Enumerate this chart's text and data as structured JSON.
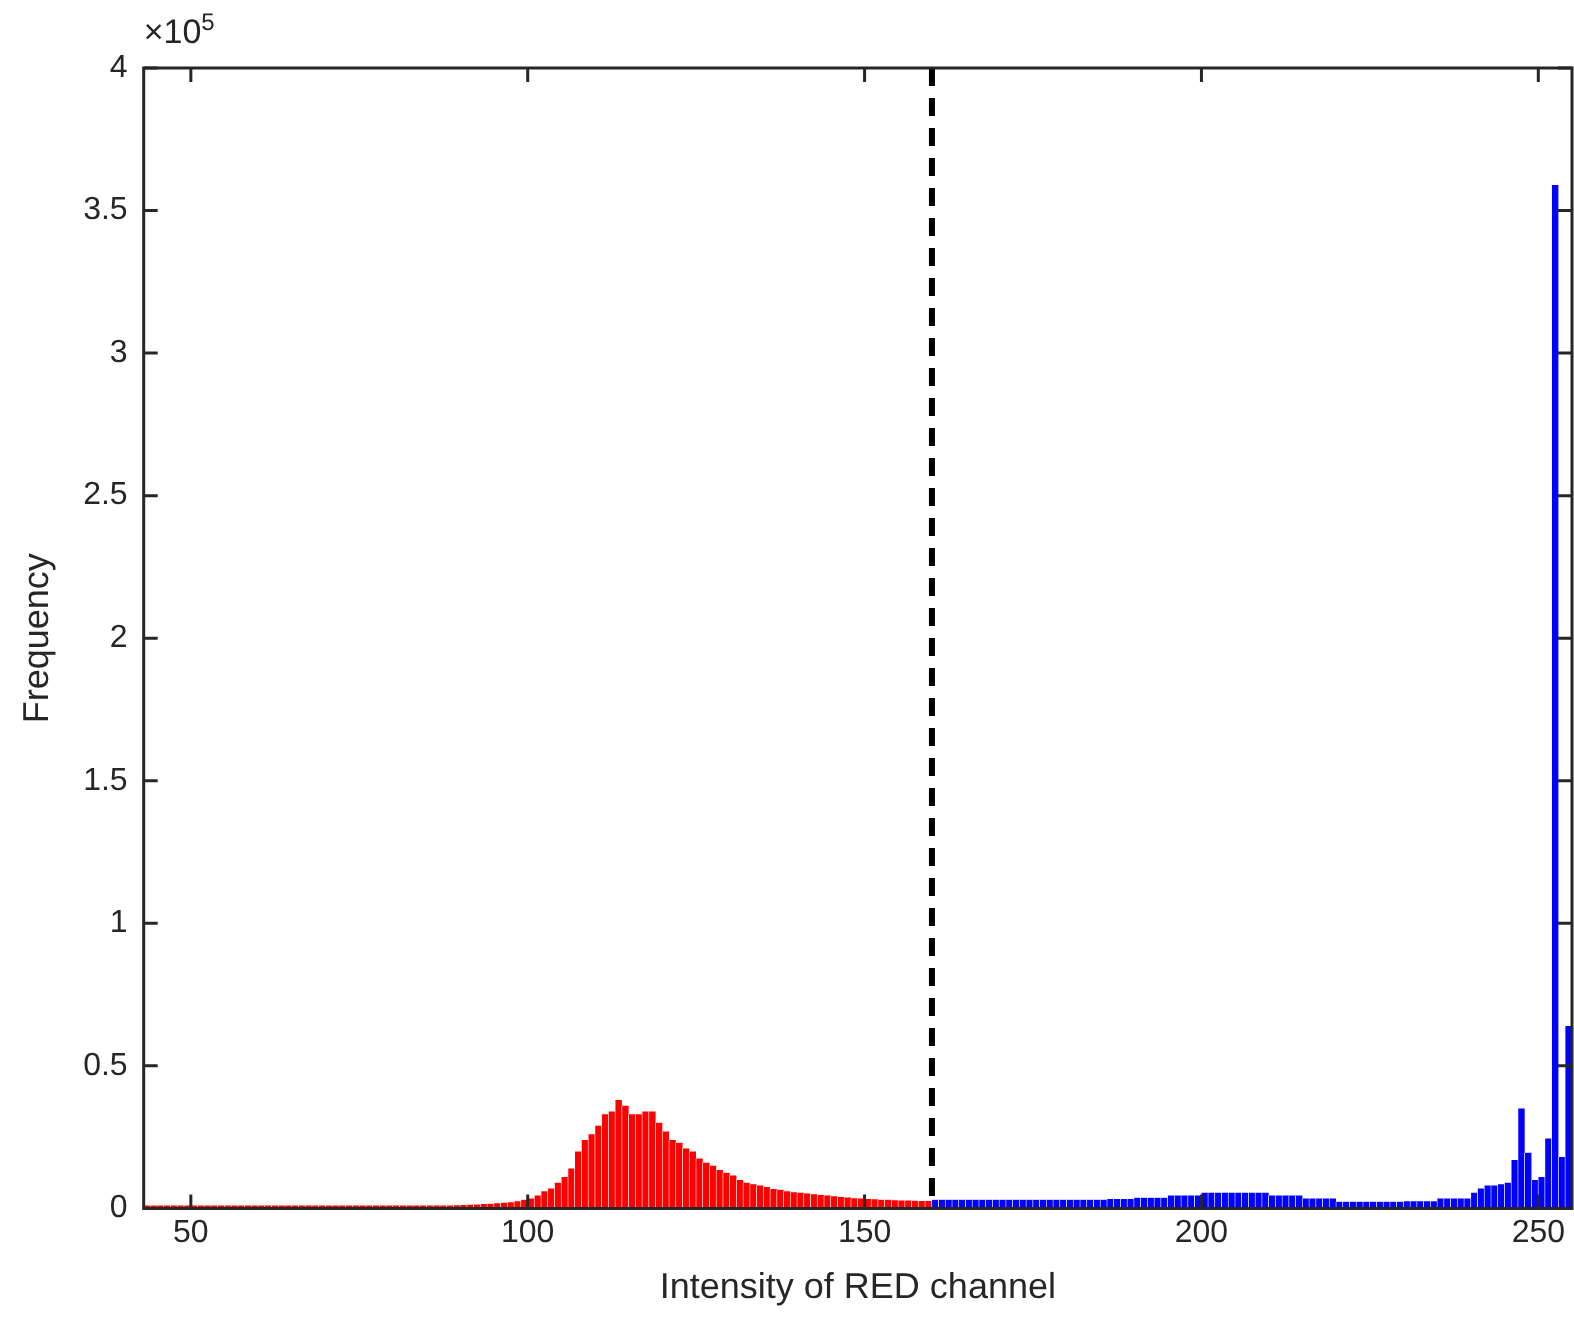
{
  "chart_data": {
    "type": "histogram",
    "xlabel": "Intensity of RED channel",
    "ylabel": "Frequency",
    "annotations": [
      "×10$^{5}$"
    ],
    "xlim": [
      43,
      255
    ],
    "xticks": [
      50,
      100,
      150,
      200,
      250
    ],
    "ylim": [
      0,
      4
    ],
    "yticks": [
      0,
      0.5,
      1,
      1.5,
      2,
      2.5,
      3,
      3.5,
      4
    ],
    "ref_lines": [
      {
        "axis": "x",
        "value": 160,
        "color": "#000000",
        "line_style": "dashed"
      }
    ],
    "bins": [
      43,
      44,
      45,
      46,
      47,
      48,
      49,
      50,
      51,
      52,
      53,
      54,
      55,
      56,
      57,
      58,
      59,
      60,
      61,
      62,
      63,
      64,
      65,
      66,
      67,
      68,
      69,
      70,
      71,
      72,
      73,
      74,
      75,
      76,
      77,
      78,
      79,
      80,
      81,
      82,
      83,
      84,
      85,
      86,
      87,
      88,
      89,
      90,
      91,
      92,
      93,
      94,
      95,
      96,
      97,
      98,
      99,
      100,
      101,
      102,
      103,
      104,
      105,
      106,
      107,
      108,
      109,
      110,
      111,
      112,
      113,
      114,
      115,
      116,
      117,
      118,
      119,
      120,
      121,
      122,
      123,
      124,
      125,
      126,
      127,
      128,
      129,
      130,
      131,
      132,
      133,
      134,
      135,
      136,
      137,
      138,
      139,
      140,
      141,
      142,
      143,
      144,
      145,
      146,
      147,
      148,
      149,
      150,
      151,
      152,
      153,
      154,
      155,
      156,
      157,
      158,
      159,
      160,
      161,
      162,
      163,
      164,
      165,
      166,
      167,
      168,
      169,
      170,
      171,
      172,
      173,
      174,
      175,
      176,
      177,
      178,
      179,
      180,
      181,
      182,
      183,
      184,
      185,
      186,
      187,
      188,
      189,
      190,
      191,
      192,
      193,
      194,
      195,
      196,
      197,
      198,
      199,
      200,
      201,
      202,
      203,
      204,
      205,
      206,
      207,
      208,
      209,
      210,
      211,
      212,
      213,
      214,
      215,
      216,
      217,
      218,
      219,
      220,
      221,
      222,
      223,
      224,
      225,
      226,
      227,
      228,
      229,
      230,
      231,
      232,
      233,
      234,
      235,
      236,
      237,
      238,
      239,
      240,
      241,
      242,
      243,
      244,
      245,
      246,
      247,
      248,
      249,
      250,
      251,
      252,
      253,
      254,
      255
    ],
    "values": [
      0.01,
      0.01,
      0.01,
      0.01,
      0.01,
      0.01,
      0.01,
      0.01,
      0.01,
      0.01,
      0.01,
      0.01,
      0.01,
      0.01,
      0.01,
      0.01,
      0.01,
      0.01,
      0.01,
      0.01,
      0.01,
      0.01,
      0.01,
      0.01,
      0.01,
      0.01,
      0.01,
      0.01,
      0.01,
      0.01,
      0.01,
      0.01,
      0.01,
      0.01,
      0.01,
      0.01,
      0.01,
      0.01,
      0.01,
      0.01,
      0.01,
      0.01,
      0.01,
      0.01,
      0.01,
      0.01,
      0.011,
      0.012,
      0.013,
      0.014,
      0.015,
      0.016,
      0.018,
      0.02,
      0.022,
      0.025,
      0.03,
      0.035,
      0.045,
      0.06,
      0.07,
      0.09,
      0.11,
      0.14,
      0.2,
      0.24,
      0.26,
      0.29,
      0.33,
      0.34,
      0.38,
      0.36,
      0.33,
      0.33,
      0.34,
      0.34,
      0.3,
      0.27,
      0.24,
      0.23,
      0.21,
      0.2,
      0.175,
      0.16,
      0.15,
      0.135,
      0.125,
      0.115,
      0.1,
      0.09,
      0.085,
      0.08,
      0.075,
      0.068,
      0.065,
      0.06,
      0.057,
      0.055,
      0.052,
      0.05,
      0.047,
      0.045,
      0.043,
      0.04,
      0.038,
      0.036,
      0.035,
      0.033,
      0.032,
      0.03,
      0.03,
      0.029,
      0.028,
      0.028,
      0.027,
      0.026,
      0.026,
      0.03,
      0.03,
      0.03,
      0.03,
      0.03,
      0.03,
      0.03,
      0.03,
      0.03,
      0.03,
      0.03,
      0.03,
      0.03,
      0.03,
      0.03,
      0.03,
      0.03,
      0.03,
      0.03,
      0.03,
      0.03,
      0.03,
      0.03,
      0.03,
      0.03,
      0.03,
      0.033,
      0.033,
      0.033,
      0.033,
      0.037,
      0.037,
      0.037,
      0.037,
      0.037,
      0.045,
      0.045,
      0.045,
      0.045,
      0.045,
      0.055,
      0.055,
      0.055,
      0.055,
      0.055,
      0.055,
      0.055,
      0.055,
      0.055,
      0.055,
      0.045,
      0.045,
      0.045,
      0.045,
      0.045,
      0.035,
      0.035,
      0.035,
      0.035,
      0.035,
      0.023,
      0.023,
      0.023,
      0.023,
      0.023,
      0.023,
      0.023,
      0.023,
      0.023,
      0.023,
      0.025,
      0.025,
      0.025,
      0.025,
      0.025,
      0.035,
      0.035,
      0.035,
      0.035,
      0.035,
      0.055,
      0.07,
      0.08,
      0.08,
      0.085,
      0.09,
      0.17,
      0.35,
      0.195,
      0.1,
      0.11,
      0.245,
      3.59,
      0.18,
      0.64
    ],
    "colors": [
      "#ff0000",
      "#ff0000",
      "#ff0000",
      "#ff0000",
      "#ff0000",
      "#ff0000",
      "#ff0000",
      "#ff0000",
      "#ff0000",
      "#ff0000",
      "#ff0000",
      "#ff0000",
      "#ff0000",
      "#ff0000",
      "#ff0000",
      "#ff0000",
      "#ff0000",
      "#ff0000",
      "#ff0000",
      "#ff0000",
      "#ff0000",
      "#ff0000",
      "#ff0000",
      "#ff0000",
      "#ff0000",
      "#ff0000",
      "#ff0000",
      "#ff0000",
      "#ff0000",
      "#ff0000",
      "#ff0000",
      "#ff0000",
      "#ff0000",
      "#ff0000",
      "#ff0000",
      "#ff0000",
      "#ff0000",
      "#ff0000",
      "#ff0000",
      "#ff0000",
      "#ff0000",
      "#ff0000",
      "#ff0000",
      "#ff0000",
      "#ff0000",
      "#ff0000",
      "#ff0000",
      "#ff0000",
      "#ff0000",
      "#ff0000",
      "#ff0000",
      "#ff0000",
      "#ff0000",
      "#ff0000",
      "#ff0000",
      "#ff0000",
      "#ff0000",
      "#ff0000",
      "#ff0000",
      "#ff0000",
      "#ff0000",
      "#ff0000",
      "#ff0000",
      "#ff0000",
      "#ff0000",
      "#ff0000",
      "#ff0000",
      "#ff0000",
      "#ff0000",
      "#ff0000",
      "#ff0000",
      "#ff0000",
      "#ff0000",
      "#ff0000",
      "#ff0000",
      "#ff0000",
      "#ff0000",
      "#ff0000",
      "#ff0000",
      "#ff0000",
      "#ff0000",
      "#ff0000",
      "#ff0000",
      "#ff0000",
      "#ff0000",
      "#ff0000",
      "#ff0000",
      "#ff0000",
      "#ff0000",
      "#ff0000",
      "#ff0000",
      "#ff0000",
      "#ff0000",
      "#ff0000",
      "#ff0000",
      "#ff0000",
      "#ff0000",
      "#ff0000",
      "#ff0000",
      "#ff0000",
      "#ff0000",
      "#ff0000",
      "#ff0000",
      "#ff0000",
      "#ff0000",
      "#ff0000",
      "#ff0000",
      "#ff0000",
      "#ff0000",
      "#ff0000",
      "#ff0000",
      "#ff0000",
      "#ff0000",
      "#ff0000",
      "#ff0000",
      "#ff0000",
      "#ff0000",
      "#0000ff",
      "#0000ff",
      "#0000ff",
      "#0000ff",
      "#0000ff",
      "#0000ff",
      "#0000ff",
      "#0000ff",
      "#0000ff",
      "#0000ff",
      "#0000ff",
      "#0000ff",
      "#0000ff",
      "#0000ff",
      "#0000ff",
      "#0000ff",
      "#0000ff",
      "#0000ff",
      "#0000ff",
      "#0000ff",
      "#0000ff",
      "#0000ff",
      "#0000ff",
      "#0000ff",
      "#0000ff",
      "#0000ff",
      "#0000ff",
      "#0000ff",
      "#0000ff",
      "#0000ff",
      "#0000ff",
      "#0000ff",
      "#0000ff",
      "#0000ff",
      "#0000ff",
      "#0000ff",
      "#0000ff",
      "#0000ff",
      "#0000ff",
      "#0000ff",
      "#0000ff",
      "#0000ff",
      "#0000ff",
      "#0000ff",
      "#0000ff",
      "#0000ff",
      "#0000ff",
      "#0000ff",
      "#0000ff",
      "#0000ff",
      "#0000ff",
      "#0000ff",
      "#0000ff",
      "#0000ff",
      "#0000ff",
      "#0000ff",
      "#0000ff",
      "#0000ff",
      "#0000ff",
      "#0000ff",
      "#0000ff",
      "#0000ff",
      "#0000ff",
      "#0000ff",
      "#0000ff",
      "#0000ff",
      "#0000ff",
      "#0000ff",
      "#0000ff",
      "#0000ff",
      "#0000ff",
      "#0000ff",
      "#0000ff",
      "#0000ff",
      "#0000ff",
      "#0000ff",
      "#0000ff",
      "#0000ff",
      "#0000ff",
      "#0000ff",
      "#0000ff",
      "#0000ff",
      "#0000ff",
      "#0000ff",
      "#0000ff",
      "#0000ff",
      "#0000ff",
      "#0000ff",
      "#0000ff",
      "#0000ff",
      "#0000ff",
      "#0000ff",
      "#0000ff",
      "#0000ff",
      "#0000ff"
    ]
  }
}
